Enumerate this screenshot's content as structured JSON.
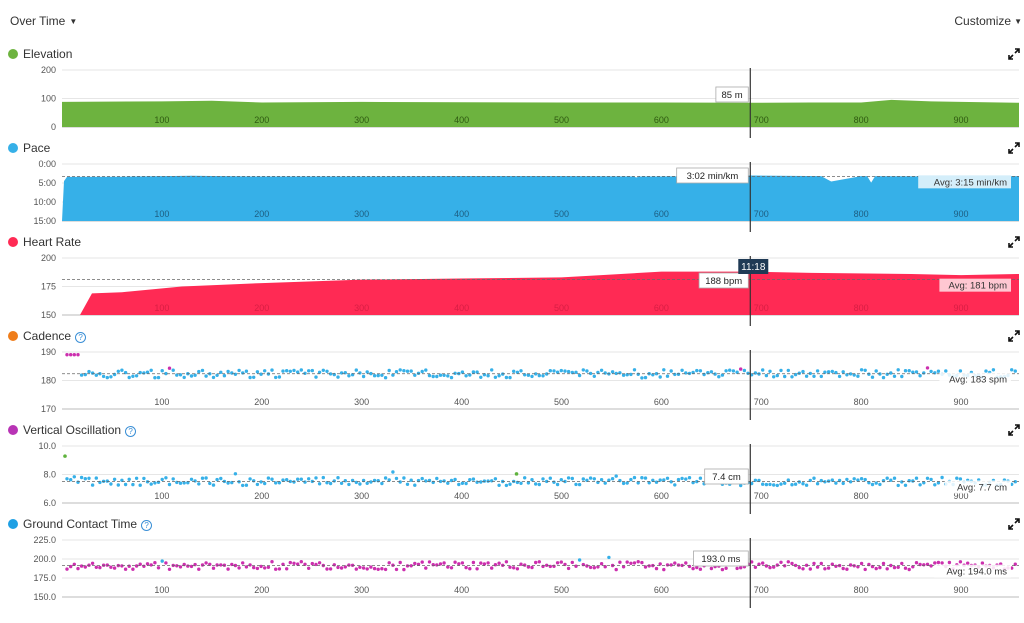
{
  "header": {
    "view_label": "Over Time",
    "customize_label": "Customize"
  },
  "cursor": {
    "x_value": 689,
    "time_label": "11:18"
  },
  "colors": {
    "elevation": "#6db33f",
    "pace": "#36b0e8",
    "heart_rate": "#ff2a54",
    "cadence_dot": "#36b0e8",
    "cadence_high": "#cc2fae",
    "vo_dot": "#36b0e8",
    "vo_high": "#5fb33d",
    "gct_dot": "#cc2fae",
    "gct_high": "#36b0e8"
  },
  "x_ticks": [
    "100",
    "200",
    "300",
    "400",
    "500",
    "600",
    "700",
    "800",
    "900"
  ],
  "charts": [
    {
      "key": "elevation",
      "title": "Elevation",
      "help": false,
      "y_ticks": [
        "200",
        "100",
        "0"
      ],
      "tooltip": "85 m",
      "avg_label": "",
      "chart_data": {
        "type": "area",
        "x_range": [
          0,
          958
        ],
        "ylim": [
          0,
          200
        ],
        "x": [
          0,
          100,
          150,
          200,
          300,
          400,
          500,
          600,
          689,
          750,
          800,
          830,
          870,
          900,
          958
        ],
        "values": [
          88,
          90,
          92,
          86,
          88,
          87,
          86,
          86,
          85,
          86,
          86,
          95,
          90,
          88,
          85
        ]
      }
    },
    {
      "key": "pace",
      "title": "Pace",
      "help": false,
      "y_ticks": [
        "0:00",
        "5:00",
        "10:00",
        "15:00"
      ],
      "tooltip": "3:02 min/km",
      "avg_label": "Avg: 3:15 min/km",
      "chart_data": {
        "type": "area",
        "x_range": [
          0,
          958
        ],
        "ylim": [
          15,
          0
        ],
        "y_unit": "min/km",
        "avg": 3.25,
        "x": [
          0,
          2,
          5,
          60,
          130,
          190,
          300,
          400,
          500,
          600,
          689,
          760,
          770,
          800,
          900,
          958
        ],
        "values": [
          15,
          4.5,
          3.4,
          3.35,
          3.1,
          3.3,
          3.3,
          3.2,
          3.2,
          3.3,
          3.03,
          3.2,
          4.6,
          3.2,
          3.3,
          3.2
        ]
      }
    },
    {
      "key": "heart_rate",
      "title": "Heart Rate",
      "help": false,
      "y_ticks": [
        "200",
        "175",
        "150"
      ],
      "tooltip": "188 bpm",
      "avg_label": "Avg: 181 bpm",
      "chart_data": {
        "type": "area",
        "x_range": [
          0,
          958
        ],
        "ylim": [
          150,
          200
        ],
        "avg": 181,
        "x": [
          18,
          30,
          60,
          120,
          200,
          300,
          400,
          500,
          540,
          600,
          689,
          750,
          850,
          900,
          958
        ],
        "values": [
          150,
          169,
          170,
          175,
          178,
          181,
          182,
          183,
          185,
          188,
          188,
          187,
          186,
          185,
          186
        ]
      }
    },
    {
      "key": "cadence",
      "title": "Cadence",
      "help": true,
      "y_ticks": [
        "190",
        "180",
        "170"
      ],
      "tooltip": "",
      "avg_label": "Avg: 183 spm",
      "chart_data": {
        "type": "scatter",
        "x_range": [
          0,
          958
        ],
        "ylim": [
          170,
          191
        ],
        "avg": 183
      }
    },
    {
      "key": "vertical_oscillation",
      "title": "Vertical Oscillation",
      "help": true,
      "y_ticks": [
        "10.0",
        "8.0",
        "6.0"
      ],
      "tooltip": "7.4 cm",
      "avg_label": "Avg: 7.7 cm",
      "chart_data": {
        "type": "scatter",
        "x_range": [
          0,
          958
        ],
        "ylim": [
          6,
          10.5
        ],
        "avg": 7.7
      }
    },
    {
      "key": "ground_contact_time",
      "title": "Ground Contact Time",
      "help": true,
      "y_ticks": [
        "225.0",
        "200.0",
        "175.0",
        "150.0"
      ],
      "tooltip": "193.0 ms",
      "avg_label": "Avg: 194.0 ms",
      "chart_data": {
        "type": "scatter",
        "x_range": [
          0,
          958
        ],
        "ylim": [
          150,
          230
        ],
        "avg": 194
      }
    }
  ]
}
